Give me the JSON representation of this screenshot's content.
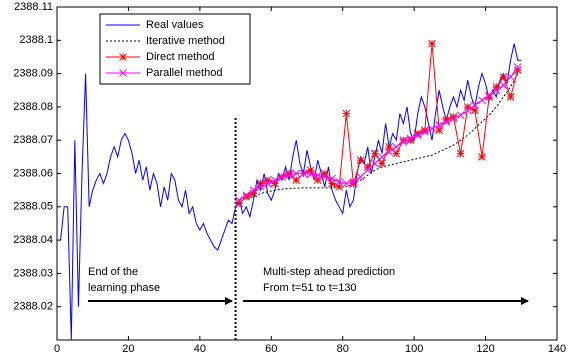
{
  "chart_data": {
    "type": "line",
    "xlim": [
      0,
      140
    ],
    "xticks": [
      0,
      20,
      40,
      60,
      80,
      100,
      120,
      140
    ],
    "ylim": [
      2388.01,
      2388.11
    ],
    "yticks": [
      2388.02,
      2388.03,
      2388.04,
      2388.05,
      2388.06,
      2388.07,
      2388.08,
      2388.09,
      2388.1,
      2388.11
    ],
    "divider_x": 50,
    "annotations": [
      "End of the",
      "learning phase",
      "Multi-step ahead prediction",
      "From t=51 to t=130"
    ],
    "legend": "upper left",
    "series": [
      {
        "name": "Real values",
        "color": "#0000ff",
        "style": "solid",
        "marker": "none",
        "x": [
          1,
          2,
          3,
          4,
          5,
          6,
          7,
          8,
          9,
          10,
          11,
          12,
          13,
          14,
          15,
          16,
          17,
          18,
          19,
          20,
          21,
          22,
          23,
          24,
          25,
          26,
          27,
          28,
          29,
          30,
          31,
          32,
          33,
          34,
          35,
          36,
          37,
          38,
          39,
          40,
          41,
          42,
          43,
          44,
          45,
          46,
          47,
          48,
          49,
          50,
          51,
          52,
          53,
          54,
          55,
          56,
          57,
          58,
          59,
          60,
          61,
          62,
          63,
          64,
          65,
          66,
          67,
          68,
          69,
          70,
          71,
          72,
          73,
          74,
          75,
          76,
          77,
          78,
          79,
          80,
          81,
          82,
          83,
          84,
          85,
          86,
          87,
          88,
          89,
          90,
          91,
          92,
          93,
          94,
          95,
          96,
          97,
          98,
          99,
          100,
          101,
          102,
          103,
          104,
          105,
          106,
          107,
          108,
          109,
          110,
          111,
          112,
          113,
          114,
          115,
          116,
          117,
          118,
          119,
          120,
          121,
          122,
          123,
          124,
          125,
          126,
          127,
          128,
          129,
          130
        ],
        "values": [
          2388.04,
          2388.05,
          2388.05,
          2388.01,
          2388.07,
          2388.02,
          2388.06,
          2388.09,
          2388.05,
          2388.055,
          2388.058,
          2388.06,
          2388.057,
          2388.06,
          2388.065,
          2388.068,
          2388.065,
          2388.07,
          2388.072,
          2388.07,
          2388.066,
          2388.06,
          2388.064,
          2388.058,
          2388.062,
          2388.055,
          2388.06,
          2388.057,
          2388.05,
          2388.056,
          2388.052,
          2388.06,
          2388.058,
          2388.052,
          2388.05,
          2388.055,
          2388.048,
          2388.05,
          2388.045,
          2388.043,
          2388.045,
          2388.042,
          2388.04,
          2388.038,
          2388.037,
          2388.04,
          2388.043,
          2388.046,
          2388.045,
          2388.05,
          2388.052,
          2388.048,
          2388.05,
          2388.047,
          2388.052,
          2388.058,
          2388.055,
          2388.06,
          2388.054,
          2388.052,
          2388.055,
          2388.06,
          2388.058,
          2388.062,
          2388.058,
          2388.065,
          2388.07,
          2388.063,
          2388.06,
          2388.067,
          2388.062,
          2388.058,
          2388.064,
          2388.06,
          2388.056,
          2388.062,
          2388.055,
          2388.052,
          2388.05,
          2388.048,
          2388.055,
          2388.05,
          2388.052,
          2388.06,
          2388.065,
          2388.063,
          2388.068,
          2388.06,
          2388.065,
          2388.07,
          2388.066,
          2388.075,
          2388.068,
          2388.072,
          2388.07,
          2388.078,
          2388.075,
          2388.08,
          2388.072,
          2388.07,
          2388.078,
          2388.083,
          2388.08,
          2388.075,
          2388.07,
          2388.078,
          2388.085,
          2388.08,
          2388.076,
          2388.08,
          2388.083,
          2388.08,
          2388.085,
          2388.082,
          2388.088,
          2388.083,
          2388.08,
          2388.086,
          2388.09,
          2388.087,
          2388.082,
          2388.085,
          2388.083,
          2388.088,
          2388.09,
          2388.087,
          2388.094,
          2388.099,
          2388.094,
          2388.094
        ]
      },
      {
        "name": "Iterative method",
        "color": "#000000",
        "style": "dashed",
        "marker": "none",
        "x": [
          51,
          53,
          55,
          57,
          59,
          61,
          63,
          65,
          67,
          69,
          71,
          73,
          75,
          77,
          79,
          81,
          83,
          85,
          87,
          89,
          91,
          93,
          95,
          97,
          99,
          101,
          103,
          105,
          107,
          109,
          111,
          113,
          115,
          117,
          119,
          121,
          123,
          125,
          127,
          129
        ],
        "values": [
          2388.052,
          2388.0525,
          2388.053,
          2388.054,
          2388.0545,
          2388.055,
          2388.0553,
          2388.0555,
          2388.0556,
          2388.0557,
          2388.0557,
          2388.0557,
          2388.0557,
          2388.0557,
          2388.0558,
          2388.056,
          2388.057,
          2388.058,
          2388.0595,
          2388.061,
          2388.062,
          2388.0625,
          2388.063,
          2388.0635,
          2388.064,
          2388.0645,
          2388.065,
          2388.0655,
          2388.0665,
          2388.0675,
          2388.0685,
          2388.07,
          2388.0715,
          2388.0735,
          2388.0755,
          2388.0775,
          2388.08,
          2388.083,
          2388.086,
          2388.09
        ]
      },
      {
        "name": "Direct method",
        "color": "#ff0000",
        "style": "solid",
        "marker": "star",
        "x": [
          51,
          53,
          55,
          57,
          59,
          61,
          63,
          65,
          67,
          69,
          71,
          73,
          75,
          77,
          79,
          81,
          83,
          85,
          87,
          89,
          91,
          93,
          95,
          97,
          99,
          101,
          103,
          105,
          107,
          109,
          111,
          113,
          115,
          117,
          119,
          121,
          123,
          125,
          127,
          129
        ],
        "values": [
          2388.051,
          2388.053,
          2388.054,
          2388.057,
          2388.058,
          2388.057,
          2388.059,
          2388.06,
          2388.058,
          2388.06,
          2388.061,
          2388.058,
          2388.06,
          2388.057,
          2388.056,
          2388.078,
          2388.057,
          2388.064,
          2388.062,
          2388.066,
          2388.063,
          2388.068,
          2388.066,
          2388.07,
          2388.07,
          2388.072,
          2388.073,
          2388.099,
          2388.073,
          2388.076,
          2388.077,
          2388.066,
          2388.08,
          2388.079,
          2388.065,
          2388.083,
          2388.086,
          2388.089,
          2388.083,
          2388.091
        ]
      },
      {
        "name": "Parallel method",
        "color": "#ff00ff",
        "style": "solid",
        "marker": "x",
        "x": [
          51,
          53,
          55,
          57,
          59,
          61,
          63,
          65,
          67,
          69,
          71,
          73,
          75,
          77,
          79,
          81,
          83,
          85,
          87,
          89,
          91,
          93,
          95,
          97,
          99,
          101,
          103,
          105,
          107,
          109,
          111,
          113,
          115,
          117,
          119,
          121,
          123,
          125,
          127,
          129
        ],
        "values": [
          2388.052,
          2388.0535,
          2388.055,
          2388.056,
          2388.057,
          2388.058,
          2388.059,
          2388.0595,
          2388.06,
          2388.06,
          2388.0598,
          2388.0595,
          2388.059,
          2388.0585,
          2388.0575,
          2388.057,
          2388.0575,
          2388.059,
          2388.061,
          2388.063,
          2388.065,
          2388.0665,
          2388.068,
          2388.0695,
          2388.0705,
          2388.0715,
          2388.0725,
          2388.0735,
          2388.0745,
          2388.0755,
          2388.0765,
          2388.0775,
          2388.079,
          2388.0805,
          2388.082,
          2388.0835,
          2388.085,
          2388.0865,
          2388.089,
          2388.092
        ]
      }
    ]
  }
}
